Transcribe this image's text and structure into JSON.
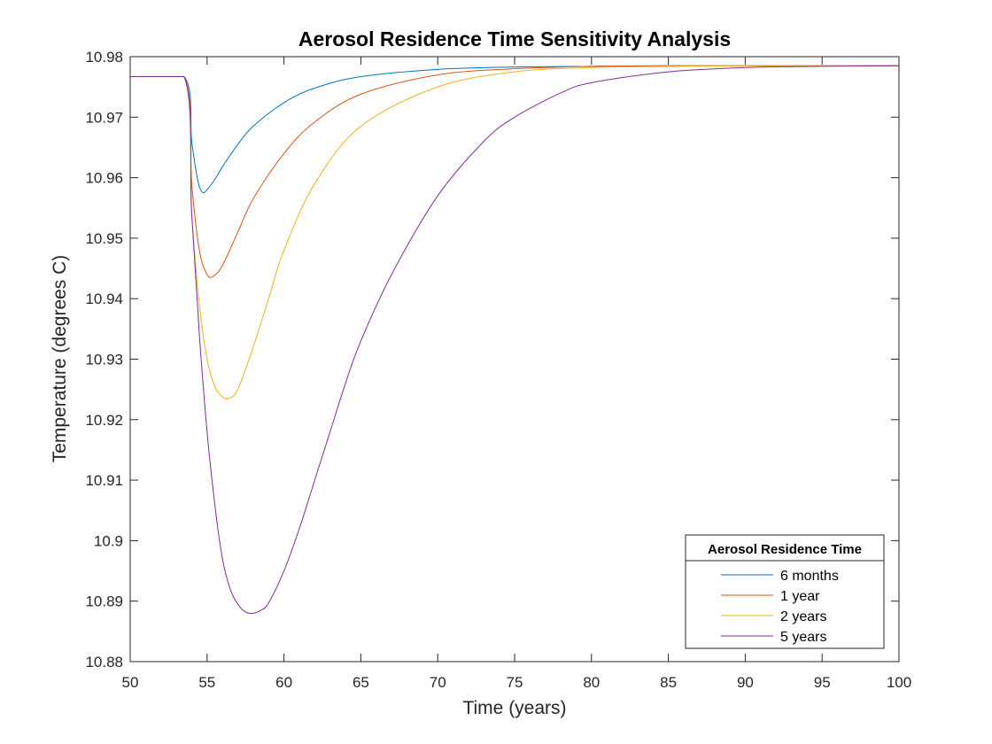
{
  "chart_data": {
    "type": "line",
    "title": "Aerosol Residence Time Sensitivity Analysis",
    "xlabel": "Time (years)",
    "ylabel": "Temperature (degrees C)",
    "xlim": [
      50,
      100
    ],
    "ylim": [
      10.88,
      10.98
    ],
    "x_ticks": [
      50,
      55,
      60,
      65,
      70,
      75,
      80,
      85,
      90,
      95,
      100
    ],
    "x_tick_labels": [
      "50",
      "55",
      "60",
      "65",
      "70",
      "75",
      "80",
      "85",
      "90",
      "95",
      "100"
    ],
    "y_ticks": [
      10.88,
      10.89,
      10.9,
      10.91,
      10.92,
      10.93,
      10.94,
      10.95,
      10.96,
      10.97,
      10.98
    ],
    "y_tick_labels": [
      "10.88",
      "10.89",
      "10.9",
      "10.91",
      "10.92",
      "10.93",
      "10.94",
      "10.95",
      "10.96",
      "10.97",
      "10.98"
    ],
    "grid": false,
    "legend": {
      "title": "Aerosol Residence Time",
      "placement": "bottom-right"
    },
    "series": [
      {
        "name": "6 months",
        "color": "#0072BD",
        "x": [
          50,
          53.5,
          54,
          54.4,
          54.7,
          55,
          55.5,
          56,
          57,
          58,
          60,
          62,
          65,
          70,
          75,
          80,
          85,
          90,
          100
        ],
        "y": [
          10.9767,
          10.9767,
          10.966,
          10.9595,
          10.9576,
          10.958,
          10.9597,
          10.9618,
          10.9655,
          10.9685,
          10.9724,
          10.9748,
          10.9767,
          10.9779,
          10.9783,
          10.9784,
          10.9785,
          10.9785,
          10.9785
        ]
      },
      {
        "name": "1 year",
        "color": "#D95319",
        "x": [
          50,
          53.5,
          54,
          54.5,
          55,
          55.4,
          56,
          57,
          58,
          60,
          62,
          65,
          70,
          75,
          80,
          85,
          90,
          100
        ],
        "y": [
          10.9767,
          10.9767,
          10.959,
          10.948,
          10.944,
          10.9437,
          10.9455,
          10.951,
          10.9565,
          10.964,
          10.9692,
          10.9738,
          10.977,
          10.978,
          10.9784,
          10.9785,
          10.9785,
          10.9785
        ]
      },
      {
        "name": "2 years",
        "color": "#EDB120",
        "x": [
          50,
          53.5,
          54,
          54.5,
          55,
          55.5,
          56,
          56.4,
          57,
          58,
          59,
          60,
          62,
          65,
          70,
          75,
          80,
          85,
          90,
          100
        ],
        "y": [
          10.9767,
          10.9767,
          10.954,
          10.939,
          10.93,
          10.9255,
          10.9238,
          10.9235,
          10.925,
          10.932,
          10.94,
          10.948,
          10.959,
          10.9685,
          10.975,
          10.9775,
          10.9782,
          10.9784,
          10.9785,
          10.9785
        ]
      },
      {
        "name": "5 years",
        "color": "#7E2F8E",
        "x": [
          50,
          53.5,
          54,
          54.5,
          55,
          55.5,
          56,
          56.5,
          57,
          57.5,
          58,
          58.5,
          59,
          60,
          61,
          62,
          63,
          64,
          65,
          67,
          70,
          73,
          75,
          78,
          80,
          85,
          90,
          95,
          100
        ],
        "y": [
          10.9767,
          10.9767,
          10.954,
          10.934,
          10.918,
          10.906,
          10.897,
          10.892,
          10.8895,
          10.8882,
          10.888,
          10.8885,
          10.8897,
          10.895,
          10.902,
          10.91,
          10.918,
          10.926,
          10.933,
          10.944,
          10.957,
          10.966,
          10.97,
          10.974,
          10.9757,
          10.9775,
          10.9782,
          10.9784,
          10.9785
        ]
      }
    ]
  }
}
